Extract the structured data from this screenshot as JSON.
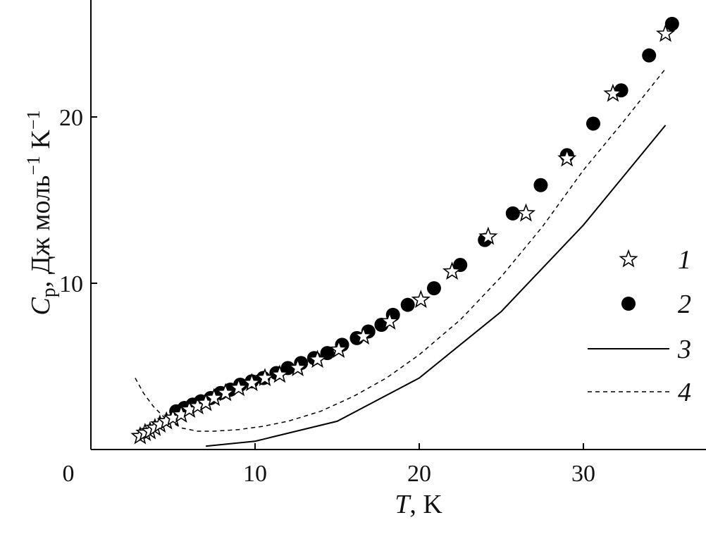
{
  "chart_data": {
    "type": "scatter",
    "xlabel": "T, K",
    "xlabel_italic": "T",
    "xlabel_rest": ", K",
    "ylabel_italic": "C",
    "ylabel_sub": "p",
    "ylabel_mid": ", Дж моль",
    "ylabel_sup": "−1",
    "ylabel_unit": " K",
    "ylabel_sup2": "−1",
    "xlim": [
      0,
      37
    ],
    "ylim": [
      0,
      27
    ],
    "x_ticks": [
      0,
      10,
      20,
      30
    ],
    "x_tick_labels": [
      "0",
      "10",
      "20",
      "30"
    ],
    "y_ticks": [
      10,
      20
    ],
    "y_tick_labels": [
      "10",
      "20"
    ],
    "grid": false,
    "legend_position": "right",
    "series": [
      {
        "name": "1",
        "kind": "marker",
        "marker": "star",
        "color": "#000000",
        "x": [
          3.0,
          3.3,
          3.6,
          3.9,
          4.2,
          4.6,
          5.0,
          5.5,
          6.0,
          6.5,
          7.0,
          7.5,
          8.2,
          9.0,
          9.8,
          10.6,
          11.5,
          12.6,
          13.8,
          15.1,
          16.6,
          18.2,
          20.1,
          22.0,
          24.2,
          26.5,
          29.0,
          31.8,
          35.0
        ],
        "y": [
          0.8,
          1.0,
          1.1,
          1.3,
          1.5,
          1.7,
          1.9,
          2.1,
          2.4,
          2.6,
          2.8,
          3.1,
          3.4,
          3.7,
          4.0,
          4.3,
          4.5,
          4.9,
          5.4,
          6.0,
          6.8,
          7.7,
          9.0,
          10.7,
          12.8,
          14.2,
          17.5,
          21.4,
          25.0
        ]
      },
      {
        "name": "2",
        "kind": "marker",
        "marker": "circle",
        "color": "#000000",
        "x": [
          5.2,
          5.7,
          6.2,
          6.7,
          7.3,
          7.9,
          8.5,
          9.1,
          9.8,
          10.5,
          11.3,
          12.0,
          12.8,
          13.6,
          14.4,
          15.3,
          16.2,
          16.9,
          17.7,
          18.4,
          19.3,
          20.9,
          22.5,
          24.0,
          25.7,
          27.4,
          29.0,
          30.6,
          32.3,
          34.0,
          35.4
        ],
        "y": [
          2.3,
          2.5,
          2.7,
          2.9,
          3.1,
          3.4,
          3.6,
          3.9,
          4.1,
          4.3,
          4.6,
          4.9,
          5.2,
          5.5,
          5.8,
          6.3,
          6.7,
          7.1,
          7.5,
          8.1,
          8.7,
          9.7,
          11.1,
          12.6,
          14.2,
          15.9,
          17.7,
          19.6,
          21.6,
          23.7,
          25.6
        ]
      },
      {
        "name": "3",
        "kind": "line",
        "dash": "solid",
        "color": "#000000",
        "x": [
          7.0,
          10.0,
          15.0,
          20.0,
          25.0,
          30.0,
          35.0
        ],
        "y": [
          0.2,
          0.5,
          1.7,
          4.3,
          8.3,
          13.5,
          19.5
        ]
      },
      {
        "name": "4",
        "kind": "line",
        "dash": "dashed",
        "color": "#000000",
        "x": [
          2.7,
          3.2,
          3.8,
          4.5,
          5.5,
          6.5,
          7.5,
          9.0,
          10.5,
          12.0,
          14.0,
          16.0,
          18.0,
          20.0,
          22.5,
          25.0,
          27.5,
          30.0,
          32.5,
          35.0
        ],
        "y": [
          4.3,
          3.4,
          2.6,
          1.9,
          1.3,
          1.1,
          1.1,
          1.2,
          1.4,
          1.7,
          2.3,
          3.2,
          4.3,
          5.7,
          7.8,
          10.4,
          13.4,
          16.8,
          19.8,
          22.9
        ]
      }
    ]
  }
}
